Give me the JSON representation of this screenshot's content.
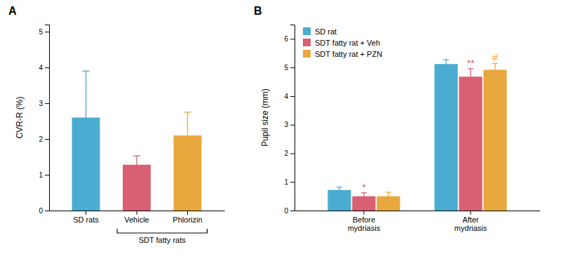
{
  "chart_data": [
    {
      "type": "bar",
      "title": "A",
      "categories": [
        "SD rats",
        "Vehicle",
        "Phlorizin"
      ],
      "values": [
        2.6,
        1.28,
        2.1
      ],
      "errors": [
        1.3,
        0.25,
        0.65
      ],
      "colors": [
        "#4AACD0",
        "#D95F72",
        "#E8A83E"
      ],
      "ylabel": "CVR-R (%)",
      "ylim": [
        0,
        5.2
      ],
      "yticks": [
        0,
        1,
        2,
        3,
        4,
        5
      ],
      "grid": false,
      "annotations": [
        {
          "text": "SDT fatty rats",
          "from": "Vehicle",
          "to": "Phlorizin"
        }
      ]
    },
    {
      "type": "bar",
      "title": "B",
      "categories": [
        "Before\nmydriasis",
        "After\nmydriasis"
      ],
      "series": [
        {
          "name": "SD rat",
          "color": "#4AACD0",
          "values": [
            0.72,
            5.12
          ],
          "errors": [
            0.1,
            0.15
          ]
        },
        {
          "name": "SDT fatty rat + Veh",
          "color": "#D95F72",
          "values": [
            0.5,
            4.68
          ],
          "errors": [
            0.12,
            0.28
          ]
        },
        {
          "name": "SDT fatty rat + PZN",
          "color": "#E8A83E",
          "values": [
            0.5,
            4.92
          ],
          "errors": [
            0.14,
            0.22
          ]
        }
      ],
      "ylabel": "Pupil size (mm)",
      "ylim": [
        0,
        6.5
      ],
      "yticks": [
        0,
        1,
        2,
        3,
        4,
        5,
        6
      ],
      "grid": false,
      "legend": "upper left",
      "annotations": [
        {
          "text": "*",
          "series": "SDT fatty rat + Veh",
          "category": "Before\nmydriasis",
          "color": "#D95F72"
        },
        {
          "text": "**",
          "series": "SDT fatty rat + Veh",
          "category": "After\nmydriasis",
          "color": "#D95F72"
        },
        {
          "text": "#",
          "series": "SDT fatty rat + PZN",
          "category": "After\nmydriasis",
          "color": "#E8A83E"
        }
      ]
    }
  ]
}
